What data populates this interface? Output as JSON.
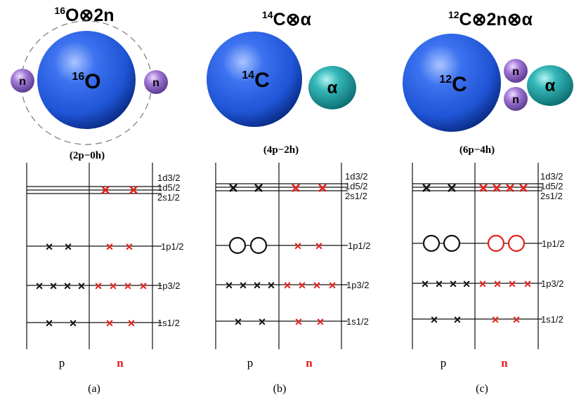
{
  "colors": {
    "nucleus_blue": "#1f55d6",
    "alpha_teal": "#1e9ea0",
    "neutron_purple": "#9a6fc9",
    "proton_mark": "#111111",
    "neutron_mark": "#e4211b"
  },
  "panels": [
    {
      "title": {
        "pre": "16",
        "sym": "O",
        "rest": "⊗2n"
      },
      "nucleus": {
        "pre": "16",
        "sym": "O"
      },
      "neutrons": [
        "n",
        "n"
      ],
      "alpha": "",
      "config": "(2p−0h)",
      "col_p": "p",
      "col_n": "n",
      "caption": "(a)"
    },
    {
      "title": {
        "pre": "14",
        "sym": "C",
        "rest": "⊗α"
      },
      "nucleus": {
        "pre": "14",
        "sym": "C"
      },
      "neutrons": [],
      "alpha": "α",
      "config": "(4p−2h)",
      "col_p": "p",
      "col_n": "n",
      "caption": "(b)"
    },
    {
      "title": {
        "pre": "12",
        "sym": "C",
        "rest": "⊗2n⊗α"
      },
      "nucleus": {
        "pre": "12",
        "sym": "C"
      },
      "neutrons": [
        "n",
        "n"
      ],
      "alpha": "α",
      "config": "(6p−4h)",
      "col_p": "p",
      "col_n": "n",
      "caption": "(c)"
    }
  ],
  "level_labels": {
    "d32": "1d3/2",
    "d52": "1d5/2",
    "s12": "2s1/2",
    "p12": "1p1/2",
    "p32": "1p3/2",
    "s12_low": "1s1/2"
  }
}
